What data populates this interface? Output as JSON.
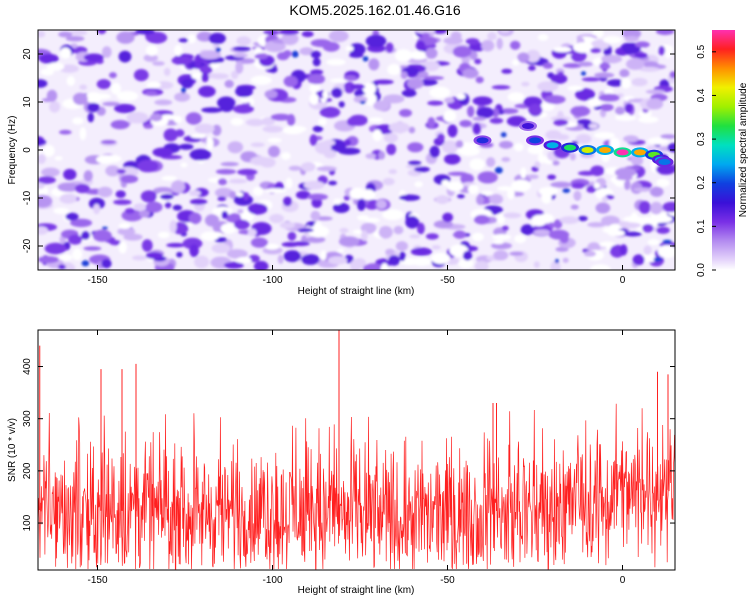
{
  "title": "KOM5.2025.162.01.46.G16",
  "chart_data": [
    {
      "type": "heatmap",
      "xlabel": "Height of straight line (km)",
      "ylabel": "Frequency (Hz)",
      "xlim": [
        -167,
        15
      ],
      "ylim": [
        -25,
        25
      ],
      "xticks": [
        -150,
        -100,
        -50,
        0
      ],
      "xtick_labels": [
        "-150",
        "-100",
        "-50",
        "0"
      ],
      "yticks": [
        20,
        10,
        0,
        -10,
        -20
      ],
      "ytick_labels": [
        "20",
        "10",
        "0",
        "-10",
        "-20"
      ],
      "colorbar": {
        "label": "Normalized spectral amplitude",
        "range": [
          0,
          0.55
        ],
        "ticks": [
          0.0,
          0.1,
          0.2,
          0.3,
          0.4,
          0.5
        ],
        "tick_labels": [
          "0.0",
          "0.1",
          "0.2",
          "0.3",
          "0.4",
          "0.5"
        ]
      },
      "signal_track": [
        {
          "x": -40,
          "y": 2,
          "amp": 0.18
        },
        {
          "x": -27,
          "y": 5,
          "amp": 0.15
        },
        {
          "x": -25,
          "y": 2,
          "amp": 0.2
        },
        {
          "x": -20,
          "y": 1,
          "amp": 0.25
        },
        {
          "x": -15,
          "y": 0.5,
          "amp": 0.32
        },
        {
          "x": -10,
          "y": 0,
          "amp": 0.4
        },
        {
          "x": -5,
          "y": 0,
          "amp": 0.45
        },
        {
          "x": 0,
          "y": -0.5,
          "amp": 0.55
        },
        {
          "x": 5,
          "y": -0.5,
          "amp": 0.45
        },
        {
          "x": 9,
          "y": -1,
          "amp": 0.35
        },
        {
          "x": 11,
          "y": -2,
          "amp": 0.25
        },
        {
          "x": 12,
          "y": -2.5,
          "amp": 0.22
        }
      ],
      "grid": false
    },
    {
      "type": "line",
      "xlabel": "Height of straight line (km)",
      "ylabel": "SNR (10 * v/v)",
      "xlim": [
        -167,
        15
      ],
      "ylim": [
        10,
        470
      ],
      "xticks": [
        -150,
        -100,
        -50,
        0
      ],
      "xtick_labels": [
        "-150",
        "-100",
        "-50",
        "0"
      ],
      "yticks": [
        100,
        200,
        300,
        400
      ],
      "ytick_labels": [
        "100",
        "200",
        "300",
        "400"
      ],
      "color": "#ff2020",
      "trend": [
        {
          "x": -167,
          "y": 125
        },
        {
          "x": -100,
          "y": 120
        },
        {
          "x": -60,
          "y": 115
        },
        {
          "x": -40,
          "y": 120
        },
        {
          "x": -20,
          "y": 135
        },
        {
          "x": 0,
          "y": 155
        },
        {
          "x": 15,
          "y": 165
        }
      ],
      "peaks": [
        {
          "x": -166.5,
          "y": 440
        },
        {
          "x": -149,
          "y": 395
        },
        {
          "x": -143,
          "y": 395
        },
        {
          "x": -139,
          "y": 405
        },
        {
          "x": -81,
          "y": 470
        },
        {
          "x": -37,
          "y": 330
        },
        {
          "x": -36,
          "y": 330
        },
        {
          "x": 10,
          "y": 390
        },
        {
          "x": 13,
          "y": 385
        }
      ],
      "grid": false
    }
  ]
}
